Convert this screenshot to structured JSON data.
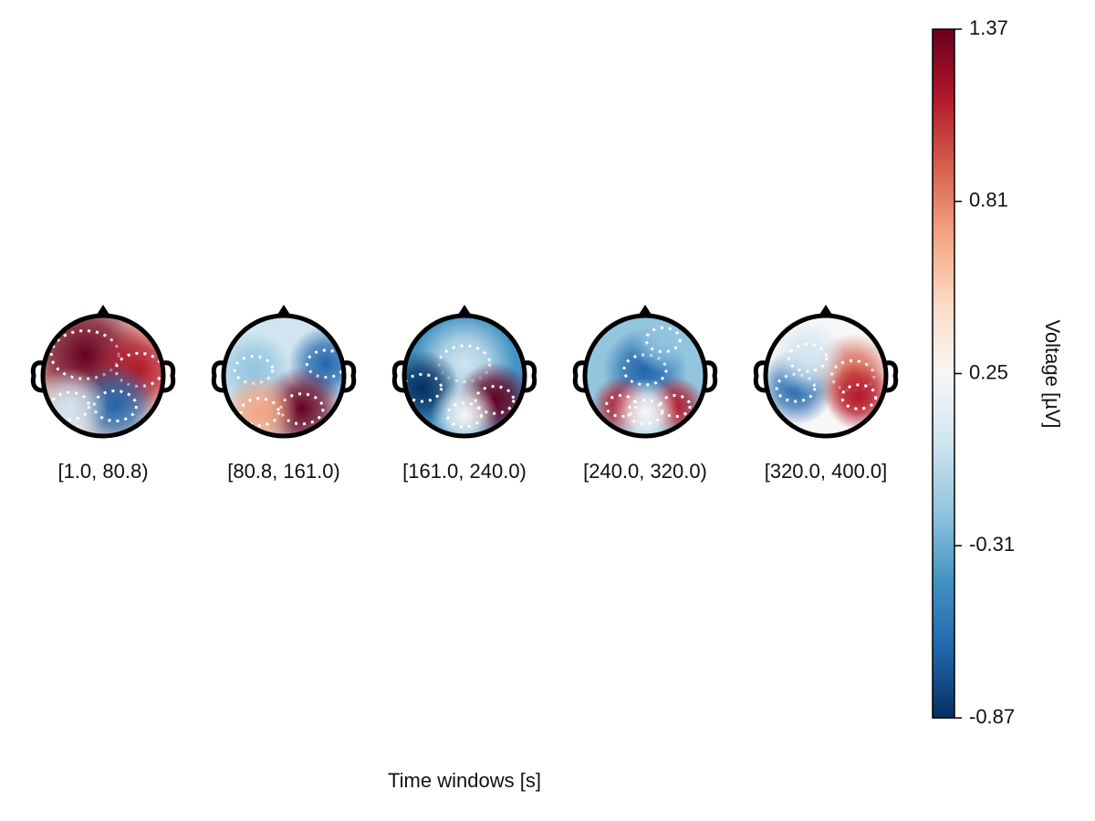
{
  "chart_data": {
    "type": "topoplot-series",
    "categories": [
      "[1.0, 80.8)",
      "[80.8, 161.0)",
      "[161.0, 240.0)",
      "[240.0, 320.0)",
      "[320.0, 400.0]"
    ],
    "xlabel": "Time windows [s]",
    "colormap": "RdBu",
    "colorbar": {
      "label": "Voltage [µV]",
      "lim": [
        -0.87,
        1.37
      ],
      "ticks": [
        -0.87,
        -0.31,
        0.25,
        0.81,
        1.37
      ]
    }
  }
}
